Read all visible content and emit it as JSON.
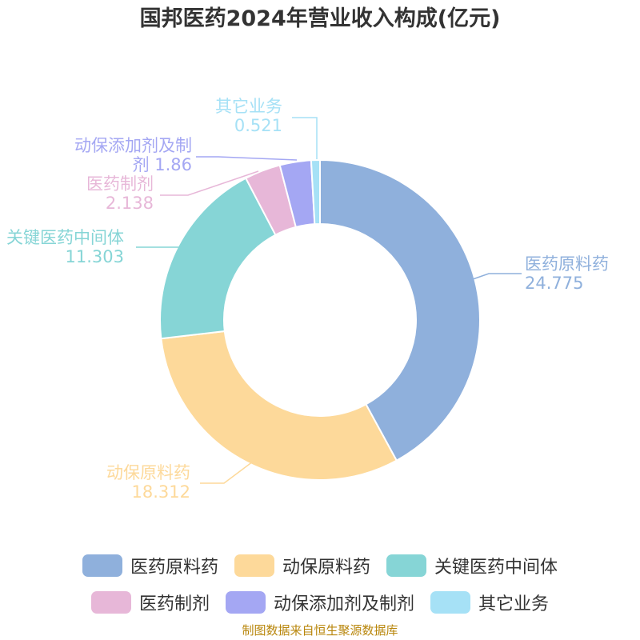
{
  "chart_data": {
    "type": "pie",
    "title": "国邦医药2024年营业收入构成(亿元)",
    "categories": [
      "医药原料药",
      "动保原料药",
      "关键医药中间体",
      "医药制剂",
      "动保添加剂及制剂",
      "其它业务"
    ],
    "values": [
      24.775,
      18.312,
      11.303,
      2.138,
      1.86,
      0.521
    ],
    "value_labels": [
      "24.775",
      "18.312",
      "11.303",
      "2.138",
      "1.86",
      "0.521"
    ],
    "colors": [
      "#8fb0dc",
      "#fdd99a",
      "#86d5d6",
      "#e7b7d8",
      "#a4a7f3",
      "#a6e1f6"
    ],
    "donut": true,
    "legend_position": "bottom"
  },
  "legend": {
    "items": [
      {
        "label": "医药原料药",
        "color": "#8fb0dc"
      },
      {
        "label": "动保原料药",
        "color": "#fdd99a"
      },
      {
        "label": "关键医药中间体",
        "color": "#86d5d6"
      },
      {
        "label": "医药制剂",
        "color": "#e7b7d8"
      },
      {
        "label": "动保添加剂及制剂",
        "color": "#a4a7f3"
      },
      {
        "label": "其它业务",
        "color": "#a6e1f6"
      }
    ]
  },
  "source_note": "制图数据来自恒生聚源数据库"
}
